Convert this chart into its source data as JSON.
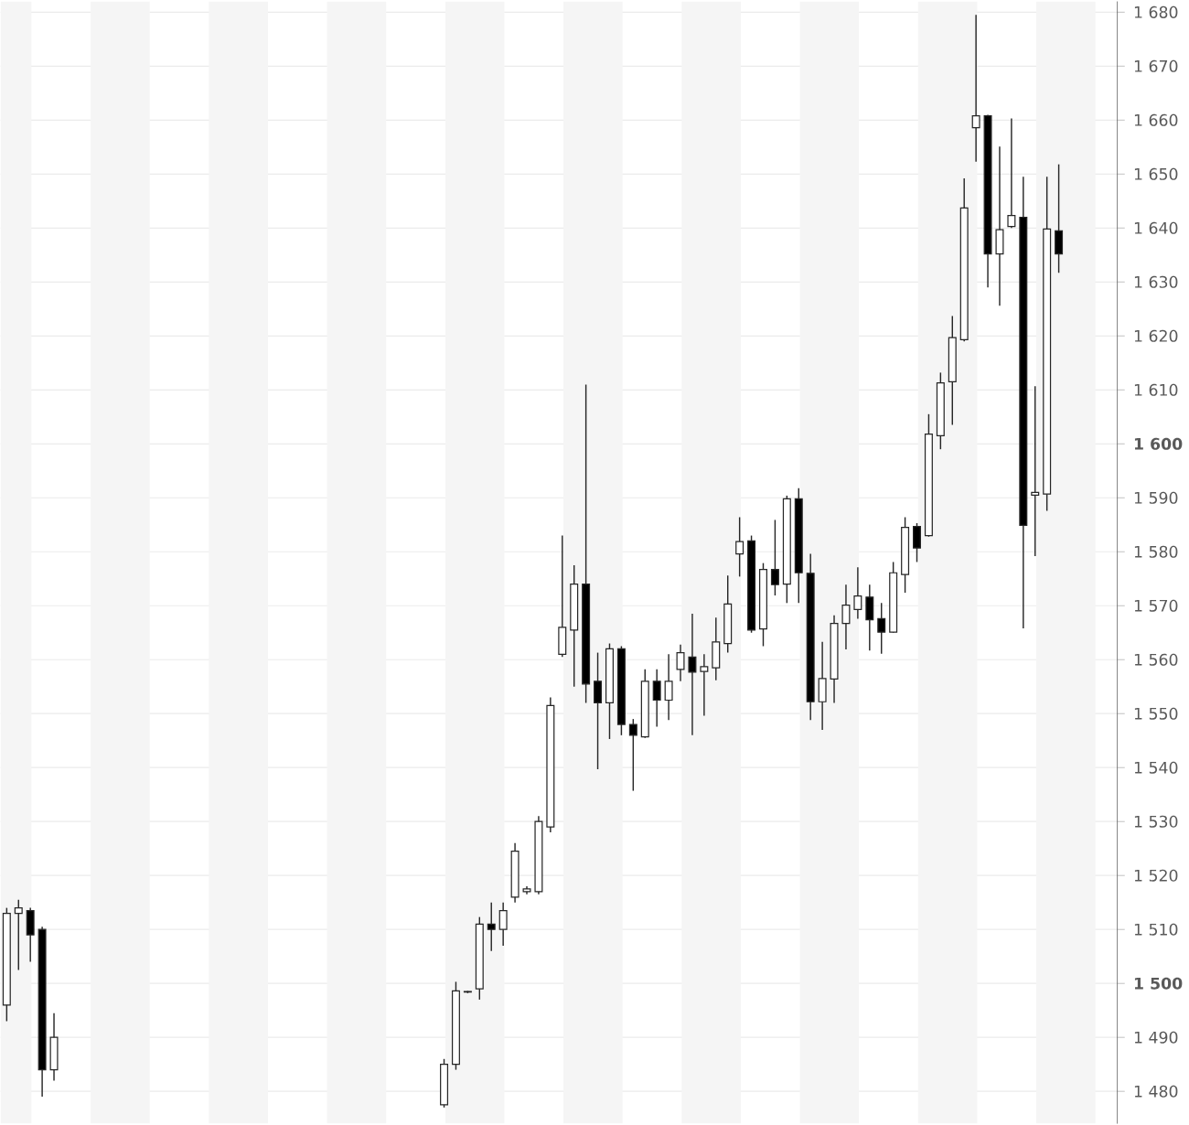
{
  "chart_data": {
    "type": "candlestick",
    "categories": [
      null,
      null,
      null,
      null,
      null,
      null,
      null,
      null,
      null,
      null,
      null,
      null,
      null,
      null,
      null,
      null,
      null,
      null,
      null,
      null,
      null,
      null,
      null,
      null,
      null,
      null,
      null,
      null,
      null,
      null,
      null,
      null,
      null,
      null,
      null,
      null,
      null,
      null,
      null,
      null,
      null,
      null,
      null,
      null,
      null,
      null,
      null,
      null,
      null,
      null,
      null,
      null,
      null,
      null,
      null,
      null,
      null,
      null,
      null,
      null,
      null,
      null,
      null,
      null,
      null,
      null,
      null,
      null,
      null,
      null,
      null,
      null,
      null,
      null,
      null,
      null,
      null,
      null,
      null,
      null,
      null,
      null,
      null,
      null,
      null,
      null,
      null,
      null,
      null,
      null
    ],
    "ohlc": [
      [
        1496,
        1514,
        1493,
        1513
      ],
      [
        1513,
        1515.5,
        1502.5,
        1514
      ],
      [
        1513.5,
        1514,
        1504,
        1509
      ],
      [
        1510,
        1510.5,
        1479,
        1484
      ],
      [
        1484,
        1494.5,
        1482,
        1490
      ],
      null,
      null,
      null,
      null,
      null,
      null,
      null,
      null,
      null,
      null,
      null,
      null,
      null,
      null,
      null,
      null,
      null,
      null,
      null,
      null,
      null,
      null,
      null,
      null,
      null,
      null,
      null,
      null,
      null,
      null,
      null,
      null,
      [
        1477.5,
        1486,
        1477,
        1485
      ],
      [
        1485,
        1500.3,
        1484,
        1498.6
      ],
      [
        1498.4,
        1498.6,
        1498.2,
        1498.5
      ],
      [
        1499,
        1512.3,
        1497,
        1511
      ],
      [
        1511,
        1515,
        1506,
        1510
      ],
      [
        1510,
        1515,
        1507,
        1513.5
      ],
      [
        1516,
        1526,
        1515,
        1524.5
      ],
      [
        1517,
        1518,
        1516.5,
        1517.5
      ],
      [
        1517,
        1531,
        1516.5,
        1530
      ],
      [
        1529,
        1553,
        1528,
        1551.5
      ],
      [
        1561,
        1583,
        1560.5,
        1566
      ],
      [
        1565.5,
        1577.5,
        1555,
        1574
      ],
      [
        1574,
        1611,
        1552,
        1555.5
      ],
      [
        1556,
        1561.3,
        1539.7,
        1552
      ],
      [
        1552,
        1563,
        1545.3,
        1562
      ],
      [
        1562,
        1562.5,
        1546,
        1548
      ],
      [
        1548,
        1549,
        1535.7,
        1546
      ],
      [
        1545.7,
        1558.2,
        1545.5,
        1556
      ],
      [
        1556,
        1558.2,
        1547.6,
        1552.5
      ],
      [
        1552.5,
        1561,
        1548.8,
        1556
      ],
      [
        1558.2,
        1562.8,
        1556,
        1561.3
      ],
      [
        1560.5,
        1568.5,
        1546,
        1557.7
      ],
      [
        1557.8,
        1561,
        1549.6,
        1558.7
      ],
      [
        1558.5,
        1567.8,
        1556.2,
        1563.3
      ],
      [
        1563,
        1575.6,
        1561.3,
        1570.3
      ],
      [
        1579.6,
        1586.4,
        1575.4,
        1581.9
      ],
      [
        1582,
        1583,
        1565,
        1565.5
      ],
      [
        1565.7,
        1577.9,
        1562.5,
        1576.7
      ],
      [
        1576.7,
        1585.9,
        1571.9,
        1573.9
      ],
      [
        1574,
        1590.4,
        1570.5,
        1589.8
      ],
      [
        1589.8,
        1591.8,
        1570.5,
        1576.1
      ],
      [
        1576,
        1579.6,
        1548.8,
        1552.2
      ],
      [
        1552.2,
        1563.3,
        1547,
        1556.5
      ],
      [
        1556.4,
        1568.2,
        1552,
        1566.7
      ],
      [
        1566.7,
        1573.9,
        1561.9,
        1570.1
      ],
      [
        1569.3,
        1577.1,
        1567.6,
        1571.8
      ],
      [
        1571.6,
        1573.9,
        1561.7,
        1567.4
      ],
      [
        1567.6,
        1570.5,
        1561.1,
        1565.1
      ],
      [
        1565.1,
        1578.1,
        1565,
        1576.1
      ],
      [
        1575.8,
        1586.4,
        1572.4,
        1584.5
      ],
      [
        1584.7,
        1585.3,
        1578.1,
        1580.7
      ],
      [
        1583,
        1605.5,
        1582.8,
        1601.8
      ],
      [
        1601.5,
        1613.2,
        1599,
        1611.3
      ],
      [
        1611.5,
        1623.7,
        1603.5,
        1619.7
      ],
      [
        1619.3,
        1649.2,
        1619,
        1643.7
      ],
      [
        1658.6,
        1679.5,
        1652.3,
        1660.8
      ],
      [
        1660.8,
        1661,
        1629,
        1635.2
      ],
      [
        1635.2,
        1655.1,
        1625.6,
        1639.7
      ],
      [
        1640.3,
        1660.3,
        1640,
        1642.3
      ],
      [
        1642,
        1649.5,
        1565.8,
        1584.9
      ],
      [
        1590.5,
        1610.7,
        1579.2,
        1591
      ],
      [
        1590.7,
        1649.5,
        1587.6,
        1639.8
      ],
      [
        1639.5,
        1651.8,
        1631.7,
        1635.2
      ]
    ],
    "ylim": [
      1474,
      1682
    ],
    "yticks": [
      {
        "value": 1480,
        "label": "1 480"
      },
      {
        "value": 1490,
        "label": "1 490"
      },
      {
        "value": 1500,
        "label": "**1 500**"
      },
      {
        "value": 1510,
        "label": "1 510"
      },
      {
        "value": 1520,
        "label": "1 520"
      },
      {
        "value": 1530,
        "label": "1 530"
      },
      {
        "value": 1540,
        "label": "1 540"
      },
      {
        "value": 1550,
        "label": "1 550"
      },
      {
        "value": 1560,
        "label": "1 560"
      },
      {
        "value": 1570,
        "label": "1 570"
      },
      {
        "value": 1580,
        "label": "1 580"
      },
      {
        "value": 1590,
        "label": "1 590"
      },
      {
        "value": 1600,
        "label": "**1 600**"
      },
      {
        "value": 1610,
        "label": "1 610"
      },
      {
        "value": 1620,
        "label": "1 620"
      },
      {
        "value": 1630,
        "label": "1 630"
      },
      {
        "value": 1640,
        "label": "1 640"
      },
      {
        "value": 1650,
        "label": "1 650"
      },
      {
        "value": 1660,
        "label": "1 660"
      },
      {
        "value": 1670,
        "label": "1 670"
      },
      {
        "value": 1680,
        "label": "1 680"
      }
    ],
    "grid": "y",
    "tick_labels": "y"
  }
}
